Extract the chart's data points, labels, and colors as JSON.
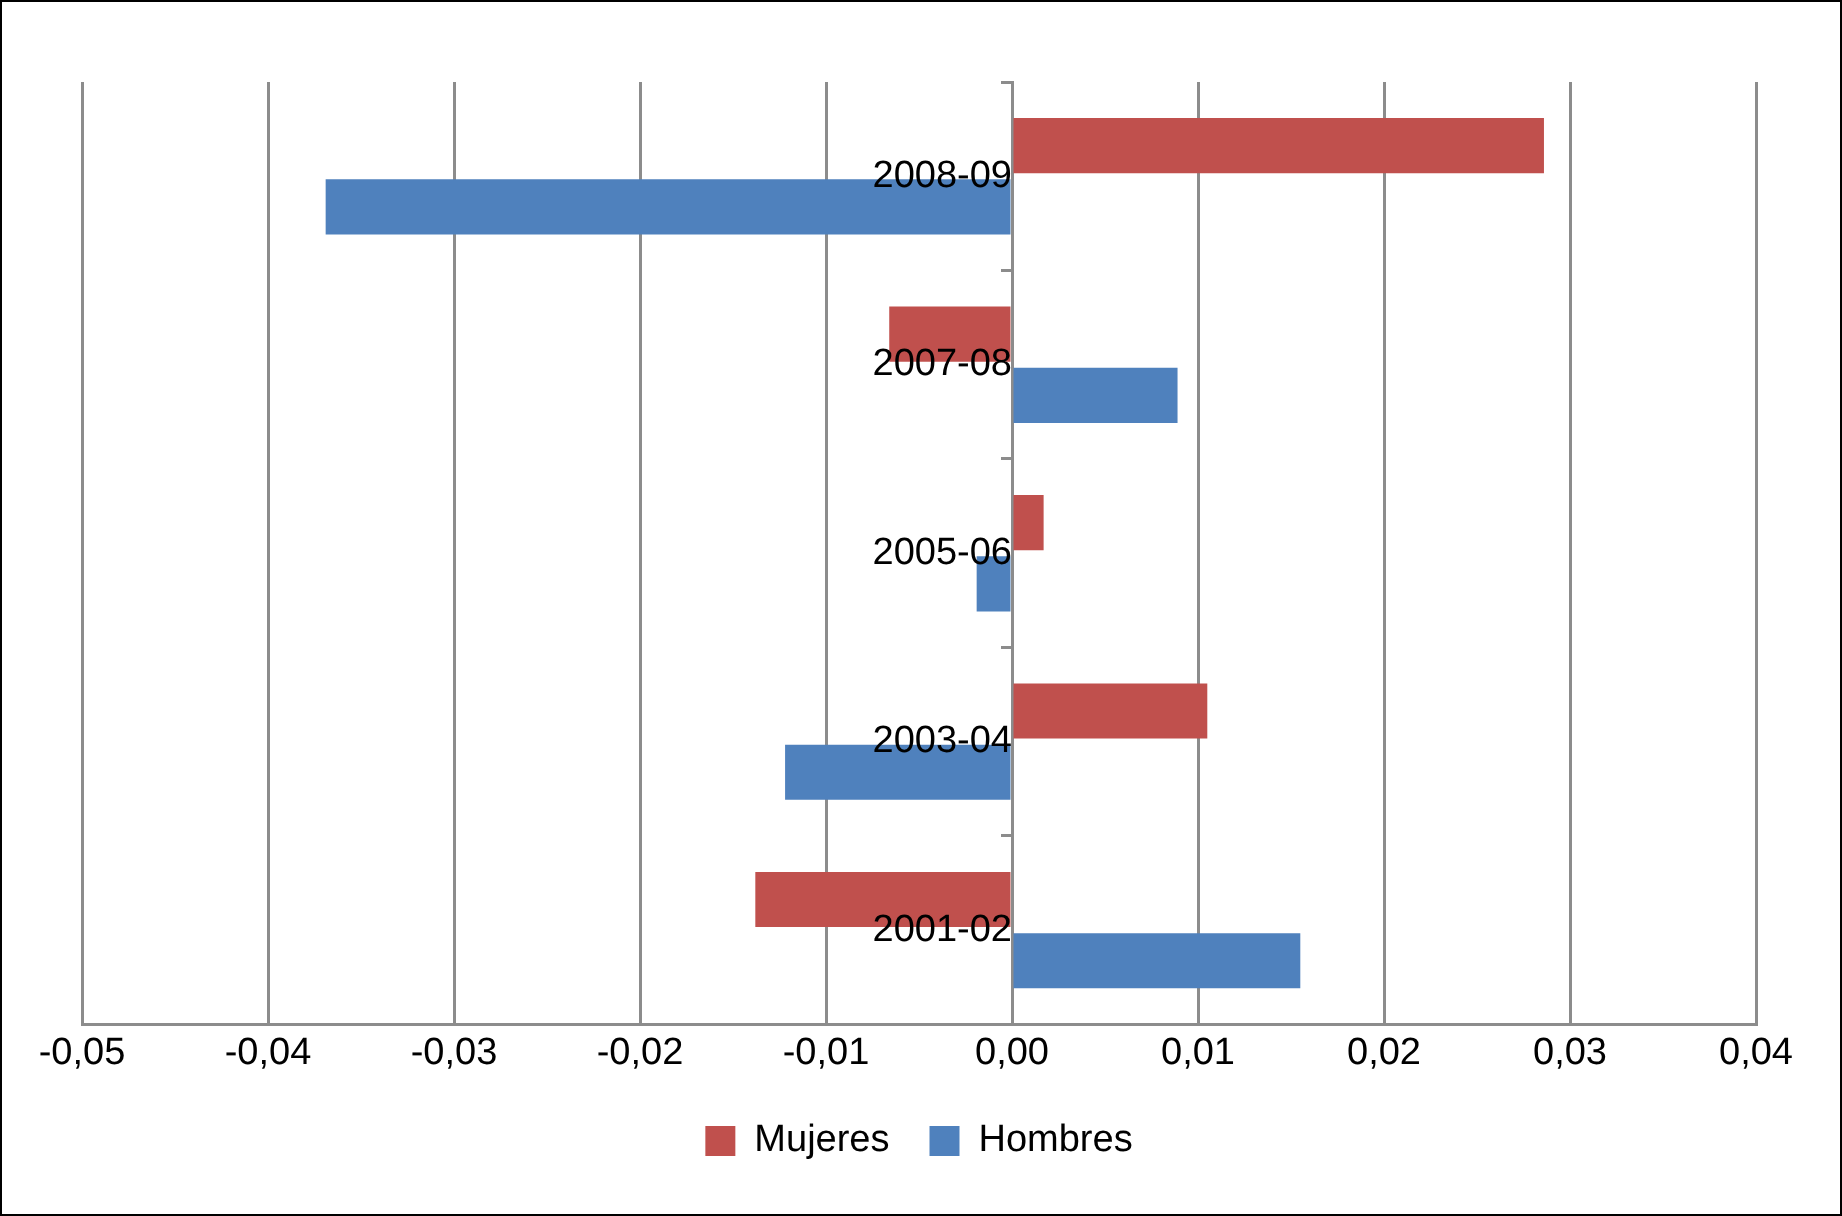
{
  "chart_data": {
    "type": "bar",
    "orientation": "horizontal",
    "categories": [
      "2008-09",
      "2007-08",
      "2005-06",
      "2003-04",
      "2001-02"
    ],
    "series": [
      {
        "name": "Mujeres",
        "color": "#c0504d",
        "values": [
          0.0286,
          -0.0066,
          0.0017,
          0.0105,
          -0.0138
        ]
      },
      {
        "name": "Hombres",
        "color": "#4f81bd",
        "values": [
          -0.0369,
          0.0089,
          -0.0019,
          -0.0122,
          0.0155
        ]
      }
    ],
    "xlim": [
      -0.05,
      0.04
    ],
    "xticks": [
      {
        "value": -0.05,
        "label": "-0,05"
      },
      {
        "value": -0.04,
        "label": "-0,04"
      },
      {
        "value": -0.03,
        "label": "-0,03"
      },
      {
        "value": -0.02,
        "label": "-0,02"
      },
      {
        "value": -0.01,
        "label": "-0,01"
      },
      {
        "value": 0,
        "label": "0,00"
      },
      {
        "value": 0.01,
        "label": "0,01"
      },
      {
        "value": 0.02,
        "label": "0,02"
      },
      {
        "value": 0.03,
        "label": "0,03"
      },
      {
        "value": 0.04,
        "label": "0,04"
      }
    ],
    "grid": "x",
    "legend": "bottom"
  }
}
